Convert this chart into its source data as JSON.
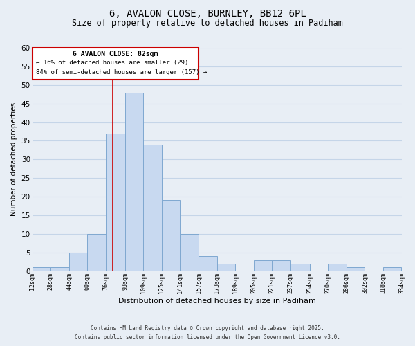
{
  "title_line1": "6, AVALON CLOSE, BURNLEY, BB12 6PL",
  "title_line2": "Size of property relative to detached houses in Padiham",
  "xlabel": "Distribution of detached houses by size in Padiham",
  "ylabel": "Number of detached properties",
  "bin_edges": [
    12,
    28,
    44,
    60,
    76,
    93,
    109,
    125,
    141,
    157,
    173,
    189,
    205,
    221,
    237,
    254,
    270,
    286,
    302,
    318,
    334
  ],
  "bin_labels": [
    "12sqm",
    "28sqm",
    "44sqm",
    "60sqm",
    "76sqm",
    "93sqm",
    "109sqm",
    "125sqm",
    "141sqm",
    "157sqm",
    "173sqm",
    "189sqm",
    "205sqm",
    "221sqm",
    "237sqm",
    "254sqm",
    "270sqm",
    "286sqm",
    "302sqm",
    "318sqm",
    "334sqm"
  ],
  "counts": [
    1,
    1,
    5,
    10,
    37,
    48,
    34,
    19,
    10,
    4,
    2,
    0,
    3,
    3,
    2,
    0,
    2,
    1,
    0,
    1
  ],
  "bar_facecolor": "#c8d9f0",
  "bar_edgecolor": "#7fa8d0",
  "grid_color": "#c5d5e8",
  "background_color": "#e8eef5",
  "annotation_box_color": "#ffffff",
  "annotation_box_edgecolor": "#cc0000",
  "property_line_color": "#cc0000",
  "property_value": 82,
  "annotation_line1": "6 AVALON CLOSE: 82sqm",
  "annotation_line2": "← 16% of detached houses are smaller (29)",
  "annotation_line3": "84% of semi-detached houses are larger (157) →",
  "ylim": [
    0,
    60
  ],
  "yticks": [
    0,
    5,
    10,
    15,
    20,
    25,
    30,
    35,
    40,
    45,
    50,
    55,
    60
  ],
  "footnote_line1": "Contains HM Land Registry data © Crown copyright and database right 2025.",
  "footnote_line2": "Contains public sector information licensed under the Open Government Licence v3.0."
}
